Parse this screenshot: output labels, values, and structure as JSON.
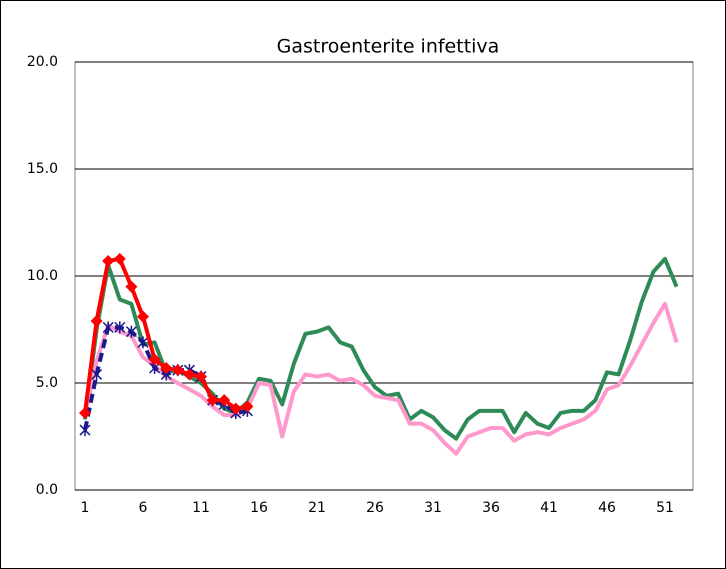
{
  "chart_data": {
    "type": "line",
    "title": "Gastroenterite infettiva",
    "categories": [
      1,
      null,
      null,
      null,
      null,
      6,
      null,
      null,
      null,
      null,
      11,
      null,
      null,
      null,
      null,
      16,
      null,
      null,
      null,
      null,
      21,
      null,
      null,
      null,
      null,
      26,
      null,
      null,
      null,
      null,
      31,
      null,
      null,
      null,
      null,
      36,
      null,
      null,
      null,
      null,
      41,
      null,
      null,
      null,
      null,
      46,
      null,
      null,
      null,
      null,
      51,
      null
    ],
    "ylim": [
      0,
      20
    ],
    "yticks": [
      {
        "value": 0,
        "label": "0.0"
      },
      {
        "value": 5,
        "label": "5.0"
      },
      {
        "value": 10,
        "label": "10.0"
      },
      {
        "value": 15,
        "label": "15.0"
      },
      {
        "value": 20,
        "label": "20.0"
      }
    ],
    "grid": true,
    "series": [
      {
        "color": "#2e8b57",
        "values": [
          3.3,
          7.5,
          10.5,
          8.9,
          8.7,
          6.8,
          6.9,
          5.5,
          5.6,
          5.3,
          5.0,
          4.5,
          3.8,
          3.6,
          4.1,
          5.2,
          5.1,
          4.0,
          5.9,
          7.3,
          7.4,
          7.6,
          6.9,
          6.7,
          5.6,
          4.8,
          4.4,
          4.5,
          3.3,
          3.7,
          3.4,
          2.8,
          2.4,
          3.3,
          3.7,
          3.7,
          3.7,
          2.7,
          3.6,
          3.1,
          2.9,
          3.6,
          3.7,
          3.7,
          4.2,
          5.5,
          5.4,
          7.0,
          8.8,
          10.2,
          10.8,
          9.5
        ]
      },
      {
        "color": "#ff99cc",
        "values": [
          3.5,
          6.0,
          7.7,
          7.4,
          7.2,
          6.2,
          5.8,
          5.3,
          5.0,
          4.7,
          4.4,
          3.9,
          3.5,
          3.5,
          3.8,
          5.0,
          4.9,
          2.5,
          4.6,
          5.4,
          5.3,
          5.4,
          5.1,
          5.2,
          4.9,
          4.4,
          4.3,
          4.2,
          3.1,
          3.1,
          2.8,
          2.2,
          1.7,
          2.5,
          2.7,
          2.9,
          2.9,
          2.3,
          2.6,
          2.7,
          2.6,
          2.9,
          3.1,
          3.3,
          3.7,
          4.7,
          4.9,
          5.8,
          6.8,
          7.8,
          8.7,
          6.9
        ]
      },
      {
        "color": "#1a1a8c",
        "dash": true,
        "marker": "star",
        "values": [
          2.8,
          5.4,
          7.6,
          7.6,
          7.4,
          6.9,
          5.7,
          5.4,
          5.6,
          5.6,
          5.3,
          4.2,
          4.0,
          3.6,
          3.7,
          null,
          null,
          null,
          null,
          null,
          null,
          null,
          null,
          null,
          null,
          null,
          null,
          null,
          null,
          null,
          null,
          null,
          null,
          null,
          null,
          null,
          null,
          null,
          null,
          null,
          null,
          null,
          null,
          null,
          null,
          null,
          null,
          null,
          null,
          null,
          null,
          null
        ]
      },
      {
        "color": "#ff0000",
        "marker": "diamond",
        "values": [
          3.6,
          7.9,
          10.7,
          10.8,
          9.5,
          8.1,
          6.1,
          5.7,
          5.6,
          5.4,
          5.3,
          4.2,
          4.2,
          3.8,
          3.9,
          null,
          null,
          null,
          null,
          null,
          null,
          null,
          null,
          null,
          null,
          null,
          null,
          null,
          null,
          null,
          null,
          null,
          null,
          null,
          null,
          null,
          null,
          null,
          null,
          null,
          null,
          null,
          null,
          null,
          null,
          null,
          null,
          null,
          null,
          null,
          null,
          null
        ]
      }
    ]
  }
}
